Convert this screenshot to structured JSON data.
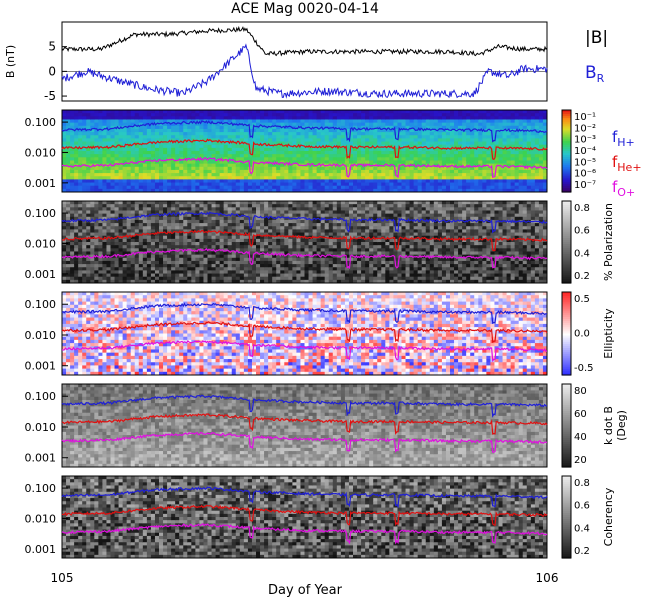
{
  "title": "ACE Mag 0020-04-14",
  "xlabel": "Day of Year",
  "x_ticks": [
    "105",
    "106"
  ],
  "colors": {
    "total_field": "#000000",
    "radial_field": "#1f1fd6",
    "f_h": "#1f1fd6",
    "f_he": "#e01010",
    "f_o": "#e010e0"
  },
  "chart_data": [
    {
      "type": "line",
      "ylabel": "B (nT)",
      "ylim": [
        -6,
        10
      ],
      "y_ticks": [
        "5",
        "0",
        "-5"
      ],
      "legend": [
        {
          "label": "|B|",
          "color": "#000000"
        },
        {
          "label": "B",
          "sub": "R",
          "color": "#1f1fd6"
        }
      ],
      "series": [
        {
          "name": "|B|",
          "x": [
            105.0,
            105.08,
            105.15,
            105.22,
            105.3,
            105.38,
            105.42,
            105.5,
            105.6,
            105.7,
            105.8,
            105.86,
            105.9,
            105.95,
            106.0
          ],
          "values": [
            4.5,
            4.5,
            7.5,
            7.5,
            8.2,
            8.5,
            3.5,
            4.0,
            4.0,
            4.0,
            4.0,
            3.5,
            5.0,
            4.5,
            4.5
          ]
        },
        {
          "name": "B_R",
          "x": [
            105.0,
            105.05,
            105.12,
            105.18,
            105.25,
            105.3,
            105.38,
            105.4,
            105.45,
            105.55,
            105.65,
            105.75,
            105.85,
            105.88,
            105.92,
            105.95,
            106.0
          ],
          "values": [
            -1.5,
            0.0,
            -2.0,
            -3.5,
            -4.5,
            -2.0,
            5.0,
            -3.5,
            -4.5,
            -4.0,
            -4.5,
            -4.5,
            -4.5,
            0.0,
            -1.0,
            0.5,
            0.5
          ]
        }
      ]
    },
    {
      "type": "heatmap",
      "ylabel": "",
      "yscale": "log",
      "ylim": [
        0.0005,
        0.25
      ],
      "y_ticks": [
        "0.100",
        "0.010",
        "0.001"
      ],
      "colorbar_ticks": [
        "10⁻¹",
        "10⁻²",
        "10⁻³",
        "10⁻⁴",
        "10⁻⁵",
        "10⁻⁶",
        "10⁻⁷"
      ],
      "legend": [
        {
          "label": "f",
          "sub": "H+",
          "color": "#1f1fd6"
        },
        {
          "label": "f",
          "sub": "He+",
          "color": "#e01010"
        },
        {
          "label": "f",
          "sub": "O+",
          "color": "#e010e0"
        }
      ],
      "series": [
        {
          "name": "f_H+",
          "x": [
            105.0,
            105.1,
            105.2,
            105.3,
            105.4,
            105.5,
            105.6,
            105.7,
            105.8,
            105.9,
            106.0
          ],
          "values": [
            0.055,
            0.06,
            0.09,
            0.1,
            0.075,
            0.065,
            0.06,
            0.06,
            0.055,
            0.055,
            0.05
          ]
        },
        {
          "name": "f_He+",
          "x": [
            105.0,
            105.1,
            105.2,
            105.3,
            105.4,
            105.5,
            105.6,
            105.7,
            105.8,
            105.9,
            106.0
          ],
          "values": [
            0.014,
            0.015,
            0.022,
            0.025,
            0.019,
            0.016,
            0.015,
            0.015,
            0.014,
            0.014,
            0.013
          ]
        },
        {
          "name": "f_O+",
          "x": [
            105.0,
            105.1,
            105.2,
            105.3,
            105.4,
            105.5,
            105.6,
            105.7,
            105.8,
            105.9,
            106.0
          ],
          "values": [
            0.0035,
            0.0038,
            0.0055,
            0.0062,
            0.0047,
            0.004,
            0.0038,
            0.0038,
            0.0035,
            0.0035,
            0.0032
          ]
        }
      ]
    },
    {
      "type": "heatmap",
      "ylabel": "",
      "yscale": "log",
      "ylim": [
        0.0005,
        0.25
      ],
      "y_ticks": [
        "0.100",
        "0.010",
        "0.001"
      ],
      "colorbar_label": "% Polarization",
      "colorbar_ticks": [
        "0.8",
        "0.6",
        "0.4",
        "0.2"
      ]
    },
    {
      "type": "heatmap",
      "ylabel": "",
      "yscale": "log",
      "ylim": [
        0.0005,
        0.25
      ],
      "y_ticks": [
        "0.100",
        "0.010",
        "0.001"
      ],
      "colorbar_label": "Ellipticity",
      "colorbar_ticks": [
        "0.5",
        "0.0",
        "-0.5"
      ]
    },
    {
      "type": "heatmap",
      "ylabel": "",
      "yscale": "log",
      "ylim": [
        0.0005,
        0.25
      ],
      "y_ticks": [
        "0.100",
        "0.010",
        "0.001"
      ],
      "colorbar_label": "k dot B",
      "colorbar_label2": "(Deg)",
      "colorbar_ticks": [
        "80",
        "60",
        "40",
        "20"
      ]
    },
    {
      "type": "heatmap",
      "ylabel": "",
      "yscale": "log",
      "ylim": [
        0.0005,
        0.25
      ],
      "y_ticks": [
        "0.100",
        "0.010",
        "0.001"
      ],
      "colorbar_label": "Coherency",
      "colorbar_ticks": [
        "0.8",
        "0.6",
        "0.4",
        "0.2"
      ]
    }
  ]
}
